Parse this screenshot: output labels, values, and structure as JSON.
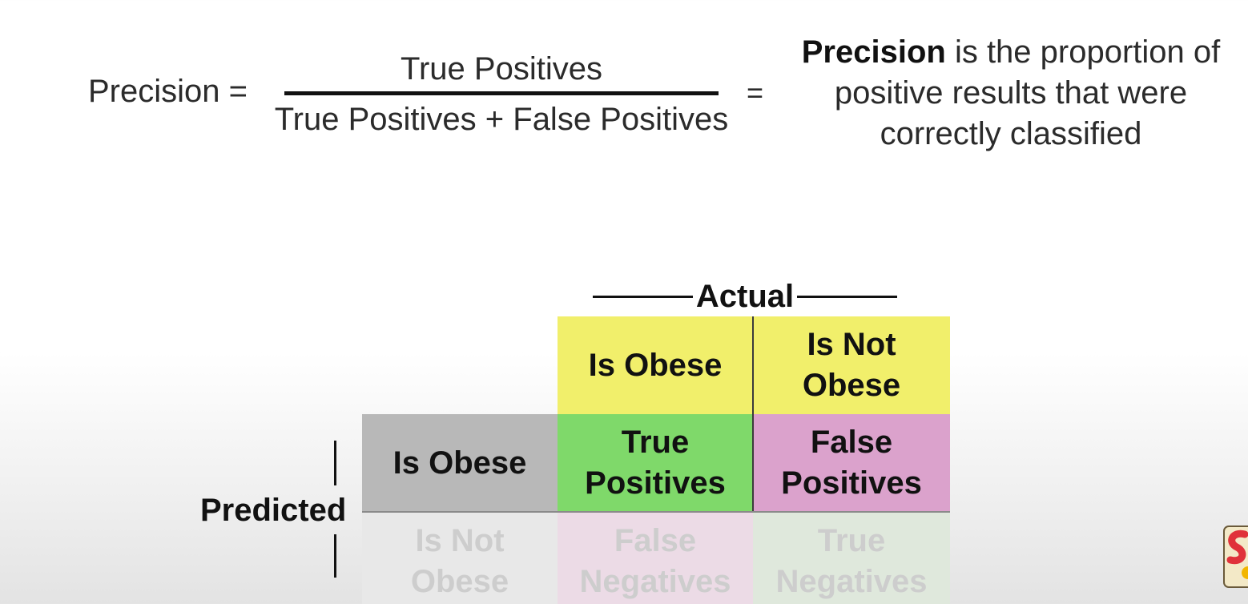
{
  "formula": {
    "label": "Precision =",
    "numerator": "True Positives",
    "denominator": "True Positives + False Positives",
    "equals": "=",
    "definition_bold": "Precision",
    "definition_rest": " is the proportion of positive results that were correctly classified"
  },
  "matrix": {
    "actual_label": "Actual",
    "predicted_label": "Predicted",
    "col_headers": [
      "Is Obese",
      "Is Not Obese"
    ],
    "row_headers": [
      "Is Obese",
      "Is Not Obese"
    ],
    "cells": [
      [
        "True Positives",
        "False Positives"
      ],
      [
        "False Negatives",
        "True Negatives"
      ]
    ],
    "colors": {
      "header": "#f1ef6b",
      "true_positive": "#7fd96a",
      "false_positive": "#dba2cc",
      "row_header": "#b8b8b8"
    }
  },
  "logo": {
    "icon": "channel-logo-icon"
  }
}
